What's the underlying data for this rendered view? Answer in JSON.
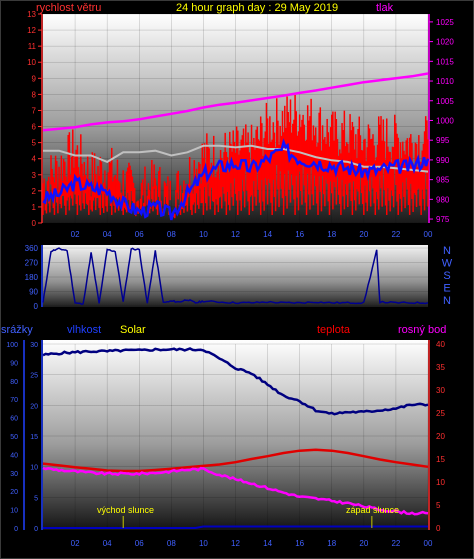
{
  "header": {
    "left_label": "rychlost větru",
    "title": "24 hour graph day : 29 May 2019",
    "right_label": "tlak"
  },
  "bottom_labels": {
    "rain": "srážky",
    "humidity": "vlhkost",
    "solar": "Solar",
    "temperature": "teplota",
    "dew": "rosný bod",
    "sunrise": "východ slunce",
    "sunset": "západ slunce"
  },
  "colors": {
    "wind": "#ff0000",
    "gust_line": "#c0c0c0",
    "wind_avg": "#1010ff",
    "pressure": "#ff00ff",
    "axis_left": "#ff3030",
    "direction": "#000090",
    "humidity": "#000080",
    "temperature": "#e00000",
    "dew": "#ff00ff",
    "solar": "#ffff00",
    "rain": "#0000c0"
  },
  "chart_data": [
    {
      "type": "line",
      "title": "24 hour graph day : 29 May 2019",
      "x_ticks": [
        "02",
        "04",
        "06",
        "08",
        "10",
        "12",
        "14",
        "16",
        "18",
        "20",
        "22",
        "00"
      ],
      "y_left": {
        "label": "rychlost větru",
        "ticks": [
          "0",
          "1",
          "2",
          "3",
          "4",
          "5",
          "6",
          "7",
          "8",
          "9",
          "10",
          "11",
          "12",
          "13"
        ],
        "range": [
          0,
          13
        ]
      },
      "y_right": {
        "label": "tlak",
        "ticks": [
          "975",
          "980",
          "985",
          "990",
          "995",
          "1000",
          "1005",
          "1010",
          "1015",
          "1020",
          "1025"
        ],
        "range": [
          974,
          1027
        ]
      },
      "series": [
        {
          "name": "rychlost větru",
          "x": [
            0,
            1,
            2,
            3,
            4,
            5,
            6,
            7,
            8,
            9,
            10,
            11,
            12,
            13,
            14,
            15,
            16,
            17,
            18,
            19,
            20,
            21,
            22,
            23,
            24
          ],
          "values": [
            2.5,
            3.5,
            4.5,
            3,
            3.5,
            2.5,
            1.8,
            2.5,
            1.5,
            3,
            4.2,
            4.2,
            4.5,
            4.6,
            6,
            6.5,
            6.8,
            6.3,
            5.5,
            5.5,
            5,
            5.3,
            5.2,
            5,
            5.2
          ]
        },
        {
          "x": [
            0,
            1,
            2,
            3,
            4,
            5,
            6,
            7,
            8,
            9,
            10,
            11,
            12,
            13,
            14,
            15,
            16,
            17,
            18,
            19,
            20,
            21,
            22,
            23,
            24
          ],
          "values": [
            4.5,
            4.5,
            4.2,
            4.2,
            3.8,
            4.4,
            4.4,
            4.5,
            4.2,
            4.4,
            4.8,
            4.8,
            4.7,
            4.8,
            4.6,
            4.6,
            4.4,
            4.1,
            3.9,
            3.8,
            3.5,
            3.5,
            3.4,
            3.3,
            3.2
          ]
        },
        {
          "x": [
            0,
            1,
            2,
            3,
            4,
            5,
            6,
            7,
            8,
            9,
            10,
            11,
            12,
            13,
            14,
            15,
            16,
            17,
            18,
            19,
            20,
            21,
            22,
            23,
            24
          ],
          "values": [
            1.5,
            1.8,
            2.5,
            2.2,
            2,
            1.2,
            0.7,
            1,
            0.5,
            1.8,
            3,
            3.5,
            3.7,
            3.4,
            4,
            4.6,
            4,
            3.8,
            3.6,
            3.4,
            3.2,
            3.3,
            3.5,
            3.5,
            4
          ]
        },
        {
          "name": "tlak",
          "x": [
            0,
            1,
            2,
            3,
            4,
            5,
            6,
            7,
            8,
            9,
            10,
            11,
            12,
            13,
            14,
            15,
            16,
            17,
            18,
            19,
            20,
            21,
            22,
            23,
            24
          ],
          "values": [
            997.5,
            997.9,
            998.3,
            999,
            999.5,
            999.8,
            1000.3,
            1001,
            1001.7,
            1002.4,
            1003.3,
            1004,
            1004.5,
            1005.1,
            1005.7,
            1006.3,
            1007,
            1007.6,
            1008.3,
            1009,
            1009.7,
            1010.2,
            1010.7,
            1011.2,
            1011.9
          ]
        }
      ]
    },
    {
      "type": "scatter",
      "y_left": {
        "ticks": [
          "0",
          "90",
          "180",
          "270",
          "360"
        ],
        "range": [
          0,
          360
        ]
      },
      "y_right": {
        "ticks": [
          "N",
          "W",
          "S",
          "E",
          "N"
        ]
      },
      "series": [
        {
          "x": [
            0,
            0.5,
            1,
            1.5,
            2,
            2.5,
            3,
            3.5,
            4,
            4.5,
            5,
            5.5,
            6,
            6.5,
            7,
            7.5,
            8,
            8.5,
            9,
            9.5,
            10,
            11,
            12,
            13,
            14,
            15,
            16,
            17,
            18,
            19,
            20,
            20.8,
            21,
            22,
            23,
            24
          ],
          "values": [
            20,
            340,
            355,
            345,
            20,
            10,
            330,
            15,
            350,
            340,
            25,
            355,
            350,
            15,
            340,
            20,
            30,
            25,
            40,
            20,
            30,
            25,
            20,
            20,
            25,
            20,
            20,
            25,
            20,
            20,
            20,
            345,
            25,
            20,
            20,
            20
          ]
        }
      ]
    },
    {
      "type": "line",
      "x_ticks": [
        "02",
        "04",
        "06",
        "08",
        "10",
        "12",
        "14",
        "16",
        "18",
        "20",
        "22",
        "00"
      ],
      "y_left": {
        "label": "srážky",
        "ticks": [
          "0",
          "10",
          "20",
          "30",
          "40",
          "50",
          "60",
          "70",
          "80",
          "90",
          "100"
        ],
        "range": [
          0,
          100
        ]
      },
      "y_mid": {
        "ticks": [
          "0",
          "5",
          "10",
          "15",
          "20",
          "25",
          "30"
        ],
        "range": [
          0,
          30
        ]
      },
      "y_right": {
        "ticks": [
          "0",
          "5",
          "10",
          "15",
          "20",
          "25",
          "30",
          "35",
          "40"
        ],
        "range": [
          0,
          40
        ]
      },
      "series": [
        {
          "name": "vlhkost",
          "x": [
            0,
            1,
            2,
            3,
            4,
            5,
            6,
            7,
            8,
            9,
            10,
            11,
            12,
            13,
            14,
            15,
            16,
            17,
            18,
            19,
            20,
            21,
            22,
            23,
            24
          ],
          "values": [
            94,
            95,
            95.5,
            96,
            96,
            96.5,
            96.5,
            97,
            97,
            97,
            97,
            92,
            87,
            84,
            78,
            72,
            69,
            64,
            62,
            63,
            63,
            64,
            65,
            67,
            67
          ]
        },
        {
          "name": "teplota",
          "x": [
            0,
            1,
            2,
            3,
            4,
            5,
            6,
            7,
            8,
            9,
            10,
            11,
            12,
            13,
            14,
            15,
            16,
            17,
            18,
            19,
            20,
            21,
            22,
            23,
            24
          ],
          "values": [
            14,
            13.6,
            13.2,
            12.9,
            12.5,
            12.4,
            12.4,
            12.6,
            12.9,
            13.2,
            13.5,
            13.8,
            14.3,
            15,
            15.6,
            16.3,
            16.8,
            17,
            16.8,
            16.3,
            15.6,
            14.9,
            14.3,
            13.8,
            13.3
          ]
        },
        {
          "name": "rosný bod",
          "x": [
            0,
            1,
            2,
            3,
            4,
            5,
            6,
            7,
            8,
            9,
            10,
            11,
            12,
            13,
            14,
            15,
            16,
            17,
            18,
            19,
            20,
            21,
            22,
            23,
            24
          ],
          "values": [
            13,
            12.6,
            12.3,
            12,
            11.8,
            11.8,
            11.8,
            12,
            12.3,
            12.7,
            12.8,
            11.6,
            10.6,
            9.7,
            8.7,
            7.7,
            6.8,
            6.4,
            5.9,
            5.4,
            4.7,
            4,
            3.6,
            3.2,
            3.2
          ]
        },
        {
          "name": "Solar",
          "x": [
            5,
            20.5
          ],
          "values": [
            0,
            0
          ]
        },
        {
          "name": "srážky",
          "x": [
            0,
            9.5,
            10,
            24
          ],
          "values": [
            0,
            0,
            0.8,
            0.8
          ]
        }
      ]
    }
  ]
}
